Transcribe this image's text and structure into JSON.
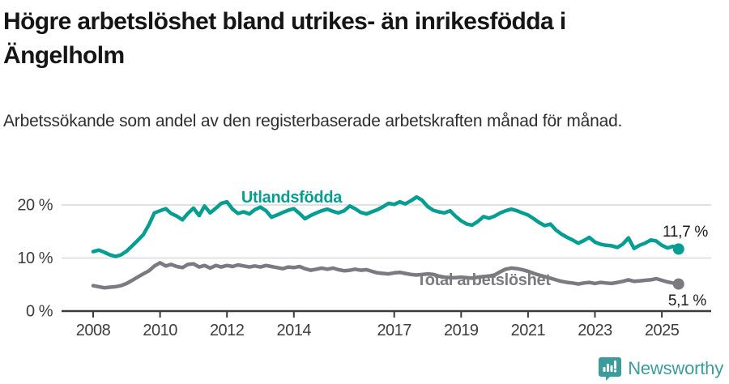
{
  "header": {
    "title": "Högre arbetslöshet bland utrikes- än inrikesfödda i Ängelholm",
    "subtitle": "Arbetssökande som andel av den registerbaserade arbetskraften månad för månad."
  },
  "footer": {
    "brand": "Newsworthy",
    "logo_icon": "newsworthy-speech-bubble-barchart-icon"
  },
  "colors": {
    "foreign_born_line": "#069e92",
    "total_line": "#7a7a80",
    "axis": "#3b3b3b",
    "grid": "#d9d9d9",
    "tick_text": "#3d3d3d",
    "end_label_text": "#1a1a1a",
    "brand_teal": "#3a9d9c"
  },
  "chart_data": {
    "type": "line",
    "title": "Högre arbetslöshet bland utrikes- än inrikesfödda i Ängelholm",
    "subtitle": "Arbetssökande som andel av den registerbaserade arbetskraften månad för månad.",
    "xlabel": "",
    "ylabel": "",
    "grid": "horizontal",
    "legend_position": "inline-labels",
    "xlim": [
      2007.8,
      2026.0
    ],
    "ylim": [
      0,
      22.5
    ],
    "x_ticks": [
      2008,
      2010,
      2012,
      2014,
      2017,
      2019,
      2021,
      2023,
      2025
    ],
    "x_tick_labels": [
      "2008",
      "2010",
      "2012",
      "2014",
      "2017",
      "2019",
      "2021",
      "2023",
      "2025"
    ],
    "y_ticks": [
      0,
      10,
      20
    ],
    "y_tick_labels": [
      "0 %",
      "10 %",
      "20 %"
    ],
    "series": [
      {
        "name": "Utlandsfödda",
        "color_key": "foreign_born_line",
        "end_label": "11,7 %",
        "last_value": 11.7,
        "points": [
          [
            2008.0,
            11.2
          ],
          [
            2008.17,
            11.5
          ],
          [
            2008.33,
            11.1
          ],
          [
            2008.5,
            10.6
          ],
          [
            2008.67,
            10.3
          ],
          [
            2008.83,
            10.6
          ],
          [
            2009.0,
            11.3
          ],
          [
            2009.17,
            12.3
          ],
          [
            2009.33,
            13.3
          ],
          [
            2009.5,
            14.4
          ],
          [
            2009.67,
            16.3
          ],
          [
            2009.83,
            18.5
          ],
          [
            2010.0,
            18.9
          ],
          [
            2010.17,
            19.3
          ],
          [
            2010.33,
            18.4
          ],
          [
            2010.5,
            17.9
          ],
          [
            2010.67,
            17.2
          ],
          [
            2010.83,
            18.4
          ],
          [
            2011.0,
            19.4
          ],
          [
            2011.17,
            18.0
          ],
          [
            2011.33,
            19.8
          ],
          [
            2011.5,
            18.5
          ],
          [
            2011.67,
            19.4
          ],
          [
            2011.83,
            20.3
          ],
          [
            2012.0,
            20.6
          ],
          [
            2012.17,
            19.2
          ],
          [
            2012.33,
            18.4
          ],
          [
            2012.5,
            18.7
          ],
          [
            2012.67,
            18.3
          ],
          [
            2012.83,
            19.1
          ],
          [
            2013.0,
            19.6
          ],
          [
            2013.17,
            18.9
          ],
          [
            2013.33,
            17.7
          ],
          [
            2013.5,
            18.1
          ],
          [
            2013.67,
            18.6
          ],
          [
            2013.83,
            19.0
          ],
          [
            2014.0,
            19.3
          ],
          [
            2014.17,
            18.4
          ],
          [
            2014.33,
            17.4
          ],
          [
            2014.5,
            18.0
          ],
          [
            2014.67,
            18.5
          ],
          [
            2014.83,
            18.9
          ],
          [
            2015.0,
            19.2
          ],
          [
            2015.17,
            18.8
          ],
          [
            2015.33,
            18.5
          ],
          [
            2015.5,
            18.9
          ],
          [
            2015.67,
            19.8
          ],
          [
            2015.83,
            19.3
          ],
          [
            2016.0,
            18.6
          ],
          [
            2016.17,
            18.3
          ],
          [
            2016.33,
            18.7
          ],
          [
            2016.5,
            19.1
          ],
          [
            2016.67,
            19.7
          ],
          [
            2016.83,
            20.3
          ],
          [
            2017.0,
            20.1
          ],
          [
            2017.17,
            20.6
          ],
          [
            2017.33,
            20.2
          ],
          [
            2017.5,
            20.8
          ],
          [
            2017.67,
            21.5
          ],
          [
            2017.83,
            20.9
          ],
          [
            2018.0,
            19.7
          ],
          [
            2018.17,
            19.0
          ],
          [
            2018.33,
            18.7
          ],
          [
            2018.5,
            18.5
          ],
          [
            2018.67,
            18.9
          ],
          [
            2018.83,
            17.9
          ],
          [
            2019.0,
            17.0
          ],
          [
            2019.17,
            16.4
          ],
          [
            2019.33,
            16.2
          ],
          [
            2019.5,
            16.9
          ],
          [
            2019.67,
            17.8
          ],
          [
            2019.83,
            17.5
          ],
          [
            2020.0,
            17.9
          ],
          [
            2020.17,
            18.5
          ],
          [
            2020.33,
            18.9
          ],
          [
            2020.5,
            19.2
          ],
          [
            2020.67,
            18.9
          ],
          [
            2020.83,
            18.5
          ],
          [
            2021.0,
            18.1
          ],
          [
            2021.17,
            17.4
          ],
          [
            2021.33,
            16.7
          ],
          [
            2021.5,
            16.1
          ],
          [
            2021.67,
            16.4
          ],
          [
            2021.83,
            15.3
          ],
          [
            2022.0,
            14.5
          ],
          [
            2022.17,
            13.9
          ],
          [
            2022.33,
            13.4
          ],
          [
            2022.5,
            12.8
          ],
          [
            2022.67,
            13.3
          ],
          [
            2022.83,
            13.9
          ],
          [
            2023.0,
            13.0
          ],
          [
            2023.17,
            12.6
          ],
          [
            2023.33,
            12.4
          ],
          [
            2023.5,
            12.3
          ],
          [
            2023.67,
            12.0
          ],
          [
            2023.83,
            12.6
          ],
          [
            2024.0,
            13.8
          ],
          [
            2024.17,
            11.8
          ],
          [
            2024.33,
            12.4
          ],
          [
            2024.5,
            12.8
          ],
          [
            2024.67,
            13.4
          ],
          [
            2024.83,
            13.2
          ],
          [
            2025.0,
            12.4
          ],
          [
            2025.17,
            11.9
          ],
          [
            2025.33,
            12.2
          ],
          [
            2025.5,
            11.7
          ]
        ]
      },
      {
        "name": "Total arbetslöshet",
        "color_key": "total_line",
        "end_label": "5,1 %",
        "last_value": 5.1,
        "points": [
          [
            2008.0,
            4.8
          ],
          [
            2008.17,
            4.6
          ],
          [
            2008.33,
            4.4
          ],
          [
            2008.5,
            4.5
          ],
          [
            2008.67,
            4.6
          ],
          [
            2008.83,
            4.8
          ],
          [
            2009.0,
            5.2
          ],
          [
            2009.17,
            5.8
          ],
          [
            2009.33,
            6.4
          ],
          [
            2009.5,
            7.0
          ],
          [
            2009.67,
            7.6
          ],
          [
            2009.83,
            8.5
          ],
          [
            2010.0,
            9.1
          ],
          [
            2010.17,
            8.5
          ],
          [
            2010.33,
            8.8
          ],
          [
            2010.5,
            8.4
          ],
          [
            2010.67,
            8.2
          ],
          [
            2010.83,
            8.8
          ],
          [
            2011.0,
            8.9
          ],
          [
            2011.17,
            8.3
          ],
          [
            2011.33,
            8.6
          ],
          [
            2011.5,
            8.1
          ],
          [
            2011.67,
            8.6
          ],
          [
            2011.83,
            8.3
          ],
          [
            2012.0,
            8.6
          ],
          [
            2012.17,
            8.4
          ],
          [
            2012.33,
            8.7
          ],
          [
            2012.5,
            8.5
          ],
          [
            2012.67,
            8.3
          ],
          [
            2012.83,
            8.5
          ],
          [
            2013.0,
            8.3
          ],
          [
            2013.17,
            8.6
          ],
          [
            2013.33,
            8.4
          ],
          [
            2013.5,
            8.2
          ],
          [
            2013.67,
            8.0
          ],
          [
            2013.83,
            8.3
          ],
          [
            2014.0,
            8.2
          ],
          [
            2014.17,
            8.4
          ],
          [
            2014.33,
            8.0
          ],
          [
            2014.5,
            7.7
          ],
          [
            2014.67,
            7.9
          ],
          [
            2014.83,
            8.1
          ],
          [
            2015.0,
            7.9
          ],
          [
            2015.17,
            8.1
          ],
          [
            2015.33,
            7.8
          ],
          [
            2015.5,
            7.6
          ],
          [
            2015.67,
            7.7
          ],
          [
            2015.83,
            7.9
          ],
          [
            2016.0,
            7.7
          ],
          [
            2016.17,
            7.8
          ],
          [
            2016.33,
            7.5
          ],
          [
            2016.5,
            7.2
          ],
          [
            2016.67,
            7.1
          ],
          [
            2016.83,
            7.0
          ],
          [
            2017.0,
            7.2
          ],
          [
            2017.17,
            7.3
          ],
          [
            2017.33,
            7.1
          ],
          [
            2017.5,
            6.9
          ],
          [
            2017.67,
            6.8
          ],
          [
            2017.83,
            6.9
          ],
          [
            2018.0,
            7.0
          ],
          [
            2018.17,
            6.9
          ],
          [
            2018.33,
            6.6
          ],
          [
            2018.5,
            6.4
          ],
          [
            2018.67,
            6.3
          ],
          [
            2018.83,
            6.3
          ],
          [
            2019.0,
            6.4
          ],
          [
            2019.17,
            6.3
          ],
          [
            2019.33,
            6.2
          ],
          [
            2019.5,
            6.4
          ],
          [
            2019.67,
            6.5
          ],
          [
            2019.83,
            6.6
          ],
          [
            2020.0,
            6.8
          ],
          [
            2020.17,
            7.4
          ],
          [
            2020.33,
            7.9
          ],
          [
            2020.5,
            8.1
          ],
          [
            2020.67,
            8.0
          ],
          [
            2020.83,
            7.8
          ],
          [
            2021.0,
            7.5
          ],
          [
            2021.17,
            7.1
          ],
          [
            2021.33,
            6.8
          ],
          [
            2021.5,
            6.5
          ],
          [
            2021.67,
            6.2
          ],
          [
            2021.83,
            5.9
          ],
          [
            2022.0,
            5.6
          ],
          [
            2022.17,
            5.4
          ],
          [
            2022.33,
            5.3
          ],
          [
            2022.5,
            5.1
          ],
          [
            2022.67,
            5.3
          ],
          [
            2022.83,
            5.4
          ],
          [
            2023.0,
            5.2
          ],
          [
            2023.17,
            5.4
          ],
          [
            2023.33,
            5.3
          ],
          [
            2023.5,
            5.2
          ],
          [
            2023.67,
            5.4
          ],
          [
            2023.83,
            5.6
          ],
          [
            2024.0,
            5.9
          ],
          [
            2024.17,
            5.6
          ],
          [
            2024.33,
            5.7
          ],
          [
            2024.5,
            5.8
          ],
          [
            2024.67,
            5.9
          ],
          [
            2024.83,
            6.1
          ],
          [
            2025.0,
            5.8
          ],
          [
            2025.17,
            5.5
          ],
          [
            2025.33,
            5.3
          ],
          [
            2025.5,
            5.1
          ]
        ]
      }
    ]
  }
}
